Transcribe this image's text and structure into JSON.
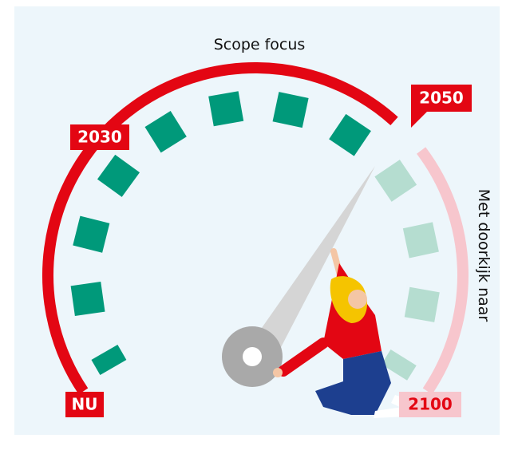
{
  "title": "Scope focus",
  "side_label": "Met doorkijk naar",
  "markers": {
    "start": "NU",
    "mid": "2030",
    "focus_end": "2050",
    "horizon_end": "2100"
  }
}
